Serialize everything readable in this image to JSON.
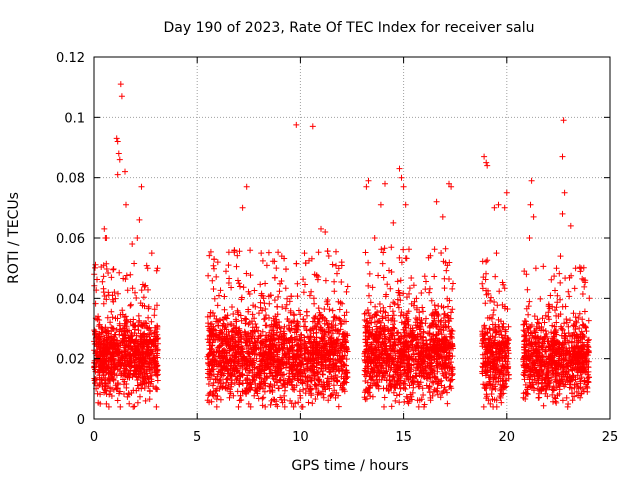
{
  "chart_data": {
    "type": "scatter",
    "title": "Day 190 of 2023, Rate Of TEC Index for receiver salu",
    "xlabel": "GPS time / hours",
    "ylabel": "ROTI / TECUs",
    "xlim": [
      0,
      25
    ],
    "ylim": [
      0,
      0.12
    ],
    "x_ticks": [
      0,
      5,
      10,
      15,
      20,
      25
    ],
    "y_ticks": [
      0,
      0.02,
      0.04,
      0.06,
      0.08,
      0.1,
      0.12
    ],
    "x_tick_labels": [
      "0",
      "5",
      "10",
      "15",
      "20",
      "25"
    ],
    "y_tick_labels": [
      "0",
      "0.02",
      "0.04",
      "0.06",
      "0.08",
      "0.1",
      "0.12"
    ],
    "grid": true,
    "marker": "+",
    "color": "#ff0000",
    "series": [
      {
        "name": "ROTI",
        "points": [
          [
            1.3,
            0.111
          ],
          [
            1.35,
            0.107
          ],
          [
            1.1,
            0.093
          ],
          [
            1.15,
            0.092
          ],
          [
            1.2,
            0.088
          ],
          [
            1.25,
            0.086
          ],
          [
            1.15,
            0.081
          ],
          [
            1.5,
            0.082
          ],
          [
            2.3,
            0.077
          ],
          [
            1.55,
            0.071
          ],
          [
            0.5,
            0.063
          ],
          [
            0.55,
            0.06
          ],
          [
            0.6,
            0.06
          ],
          [
            2.2,
            0.066
          ],
          [
            2.1,
            0.06
          ],
          [
            1.85,
            0.058
          ],
          [
            0.2,
            0.034
          ],
          [
            0.1,
            0.025
          ],
          [
            0.3,
            0.005
          ],
          [
            0.6,
            0.005
          ],
          [
            2.5,
            0.006
          ],
          [
            3.0,
            0.01
          ],
          [
            2.8,
            0.055
          ],
          [
            2.6,
            0.05
          ],
          [
            9.8,
            0.0975
          ],
          [
            10.6,
            0.097
          ],
          [
            7.4,
            0.077
          ],
          [
            7.2,
            0.07
          ],
          [
            11.2,
            0.062
          ],
          [
            11.0,
            0.063
          ],
          [
            12.0,
            0.052
          ],
          [
            6.0,
            0.052
          ],
          [
            8.1,
            0.055
          ],
          [
            9.1,
            0.054
          ],
          [
            10.2,
            0.055
          ],
          [
            6.8,
            0.056
          ],
          [
            7.5,
            0.005
          ],
          [
            9.5,
            0.006
          ],
          [
            11.7,
            0.007
          ],
          [
            8.6,
            0.006
          ],
          [
            13.3,
            0.079
          ],
          [
            13.2,
            0.077
          ],
          [
            14.8,
            0.083
          ],
          [
            14.9,
            0.08
          ],
          [
            15.0,
            0.077
          ],
          [
            13.9,
            0.071
          ],
          [
            14.1,
            0.078
          ],
          [
            15.1,
            0.071
          ],
          [
            17.2,
            0.078
          ],
          [
            17.3,
            0.077
          ],
          [
            16.6,
            0.072
          ],
          [
            13.6,
            0.06
          ],
          [
            14.5,
            0.065
          ],
          [
            16.9,
            0.067
          ],
          [
            15.3,
            0.006
          ],
          [
            16.3,
            0.007
          ],
          [
            14.6,
            0.006
          ],
          [
            18.9,
            0.087
          ],
          [
            19.0,
            0.085
          ],
          [
            19.05,
            0.084
          ],
          [
            19.4,
            0.07
          ],
          [
            19.6,
            0.071
          ],
          [
            19.9,
            0.07
          ],
          [
            20.0,
            0.075
          ],
          [
            19.5,
            0.055
          ],
          [
            19.2,
            0.005
          ],
          [
            19.7,
            0.007
          ],
          [
            21.2,
            0.079
          ],
          [
            21.15,
            0.071
          ],
          [
            21.3,
            0.067
          ],
          [
            22.7,
            0.087
          ],
          [
            22.75,
            0.099
          ],
          [
            22.8,
            0.075
          ],
          [
            22.7,
            0.068
          ],
          [
            23.1,
            0.064
          ],
          [
            22.6,
            0.054
          ],
          [
            23.6,
            0.05
          ],
          [
            21.1,
            0.06
          ],
          [
            23.8,
            0.046
          ],
          [
            22.2,
            0.008
          ],
          [
            22.9,
            0.007
          ],
          [
            23.9,
            0.009
          ],
          [
            21.5,
            0.01
          ]
        ],
        "clusters": [
          {
            "x_range": [
              0.0,
              3.1
            ],
            "y_center": 0.021,
            "y_spread": 0.014,
            "count": 900
          },
          {
            "x_range": [
              5.5,
              12.3
            ],
            "y_center": 0.021,
            "y_spread": 0.016,
            "count": 1900
          },
          {
            "x_range": [
              13.1,
              17.4
            ],
            "y_center": 0.022,
            "y_spread": 0.016,
            "count": 1200
          },
          {
            "x_range": [
              18.8,
              20.1
            ],
            "y_center": 0.02,
            "y_spread": 0.015,
            "count": 350
          },
          {
            "x_range": [
              20.8,
              24.0
            ],
            "y_center": 0.02,
            "y_spread": 0.014,
            "count": 850
          }
        ]
      }
    ]
  }
}
